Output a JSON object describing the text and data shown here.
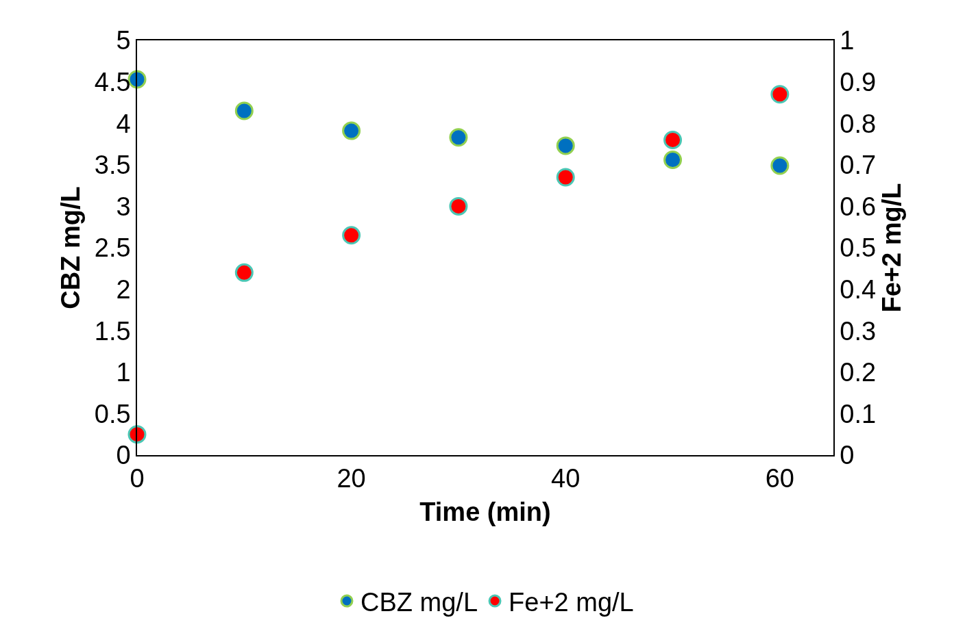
{
  "chart_data": {
    "type": "scatter",
    "xlabel": "Time (min)",
    "ylabel": "CBZ mg/L",
    "y2label": "Fe+2 mg/L",
    "x": [
      0,
      10,
      20,
      30,
      40,
      50,
      60
    ],
    "series": [
      {
        "name": "CBZ mg/L",
        "color": "#0070c0",
        "values": [
          4.53,
          4.15,
          3.91,
          3.83,
          3.73,
          3.56,
          3.49
        ]
      },
      {
        "name": "Fe+2 mg/L",
        "color": "#ff0000",
        "axis": "y2",
        "values": [
          0.05,
          0.44,
          0.53,
          0.6,
          0.67,
          0.76,
          0.87
        ]
      }
    ],
    "xlim": [
      0,
      65
    ],
    "xticks": [
      0,
      20,
      40,
      60
    ],
    "ylim": [
      0,
      5
    ],
    "yticks": [
      0,
      0.5,
      1,
      1.5,
      2,
      2.5,
      3,
      3.5,
      4,
      4.5,
      5
    ],
    "y2lim": [
      0,
      1
    ],
    "y2ticks": [
      0,
      0.1,
      0.2,
      0.3,
      0.4,
      0.5,
      0.6,
      0.7,
      0.8,
      0.9,
      1
    ],
    "marker": "circle",
    "legend": "bottom"
  }
}
